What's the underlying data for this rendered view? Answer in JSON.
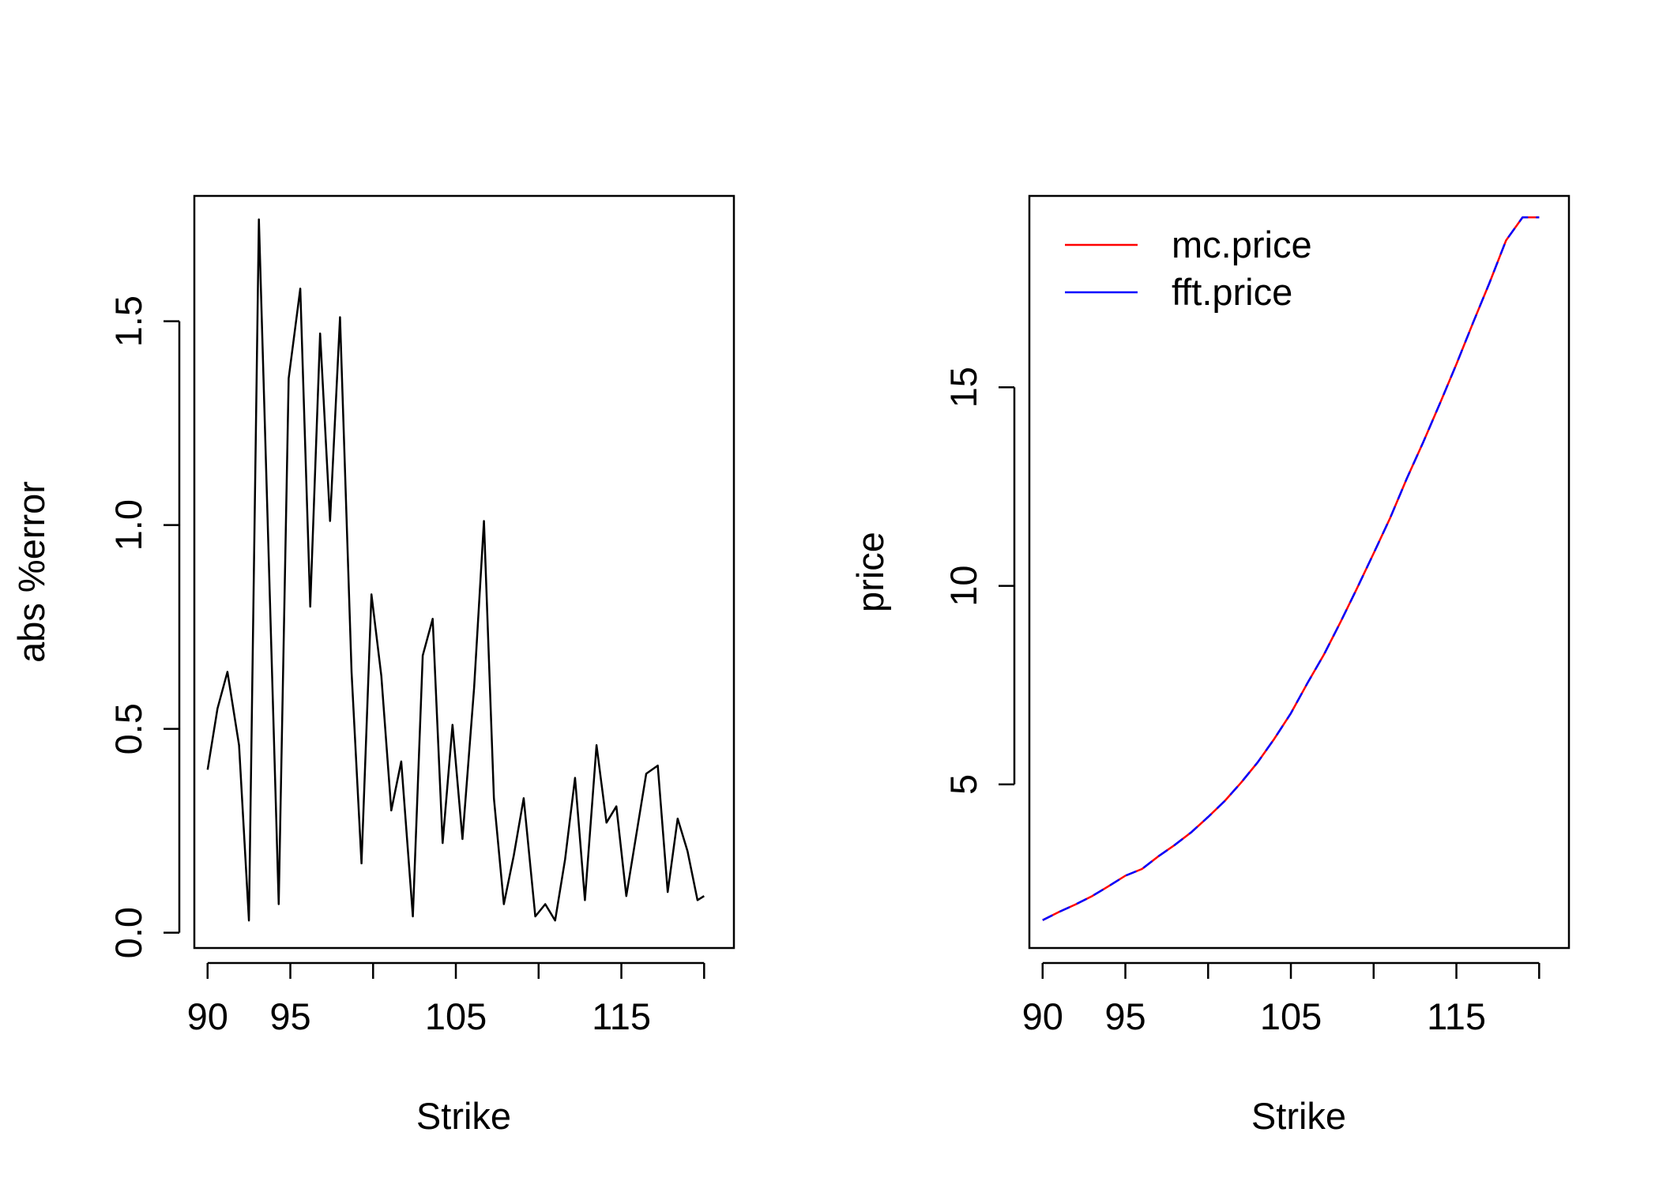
{
  "chart_data": [
    {
      "type": "line",
      "xlabel": "Strike",
      "ylabel": "abs %error",
      "xlim": [
        89.2,
        121.8
      ],
      "ylim": [
        -0.0375,
        1.8075
      ],
      "x_ticks": [
        90,
        95,
        100,
        105,
        110,
        115,
        120
      ],
      "x_tick_labels": [
        "90",
        "95",
        "",
        "105",
        "",
        "115",
        ""
      ],
      "y_ticks": [
        0.0,
        0.5,
        1.0,
        1.5
      ],
      "y_tick_labels": [
        "0.0",
        "0.5",
        "1.0",
        "1.5"
      ],
      "series": [
        {
          "color": "#000000",
          "x": [
            90,
            90.6,
            91.2,
            91.9,
            92.5,
            93.1,
            93.7,
            94.3,
            94.9,
            95.6,
            96.2,
            96.8,
            97.4,
            98,
            98.7,
            99.3,
            99.9,
            100.5,
            101.1,
            101.7,
            102.4,
            103,
            103.6,
            104.2,
            104.8,
            105.4,
            106.1,
            106.7,
            107.3,
            107.9,
            108.5,
            109.1,
            109.8,
            110.4,
            111,
            111.6,
            112.2,
            112.8,
            113.5,
            114.1,
            114.7,
            115.3,
            115.9,
            116.5,
            117.2,
            117.8,
            118.4,
            119,
            119.6,
            120
          ],
          "values": [
            0.4,
            0.55,
            0.64,
            0.46,
            0.03,
            1.75,
            0.91,
            0.07,
            1.36,
            1.58,
            0.8,
            1.47,
            1.01,
            1.51,
            0.64,
            0.17,
            0.83,
            0.63,
            0.3,
            0.42,
            0.04,
            0.68,
            0.77,
            0.22,
            0.51,
            0.23,
            0.6,
            1.01,
            0.33,
            0.07,
            0.19,
            0.33,
            0.04,
            0.07,
            0.03,
            0.18,
            0.38,
            0.08,
            0.46,
            0.27,
            0.31,
            0.09,
            0.24,
            0.39,
            0.41,
            0.1,
            0.28,
            0.2,
            0.08,
            0.09
          ]
        }
      ]
    },
    {
      "type": "line",
      "xlabel": "Strike",
      "ylabel": "price",
      "xlim": [
        89.2,
        121.8
      ],
      "ylim": [
        0.88,
        19.82
      ],
      "x_ticks": [
        90,
        95,
        100,
        105,
        110,
        115,
        120
      ],
      "x_tick_labels": [
        "90",
        "95",
        "",
        "105",
        "",
        "115",
        ""
      ],
      "y_ticks": [
        5,
        10,
        15
      ],
      "y_tick_labels": [
        "5",
        "10",
        "15"
      ],
      "legend": {
        "position": "top-left",
        "entries": [
          "mc.price",
          "fft.price"
        ]
      },
      "series": [
        {
          "name": "mc.price",
          "color": "#ff0000",
          "dash": false,
          "x": [
            90,
            91,
            92,
            93,
            94,
            95,
            96,
            97,
            98,
            99,
            100,
            101,
            102,
            103,
            104,
            105,
            106,
            107,
            108,
            109,
            110,
            111,
            112,
            113,
            114,
            115,
            116,
            117,
            118,
            119,
            120
          ],
          "values": [
            1.58,
            1.79,
            1.98,
            2.19,
            2.44,
            2.7,
            2.87,
            3.19,
            3.48,
            3.8,
            4.18,
            4.58,
            5.05,
            5.56,
            6.15,
            6.79,
            7.55,
            8.27,
            9.09,
            9.94,
            10.82,
            11.71,
            12.7,
            13.62,
            14.59,
            15.58,
            16.62,
            17.63,
            18.7,
            19.28,
            19.28
          ]
        },
        {
          "name": "fft.price",
          "color": "#0000ff",
          "dash": true,
          "x": [
            90,
            91,
            92,
            93,
            94,
            95,
            96,
            97,
            98,
            99,
            100,
            101,
            102,
            103,
            104,
            105,
            106,
            107,
            108,
            109,
            110,
            111,
            112,
            113,
            114,
            115,
            116,
            117,
            118,
            119,
            120
          ],
          "values": [
            1.58,
            1.79,
            1.98,
            2.19,
            2.44,
            2.7,
            2.87,
            3.19,
            3.48,
            3.8,
            4.18,
            4.58,
            5.05,
            5.56,
            6.15,
            6.79,
            7.55,
            8.27,
            9.09,
            9.94,
            10.82,
            11.71,
            12.7,
            13.62,
            14.59,
            15.58,
            16.62,
            17.63,
            18.7,
            19.28,
            19.28
          ]
        }
      ]
    }
  ]
}
